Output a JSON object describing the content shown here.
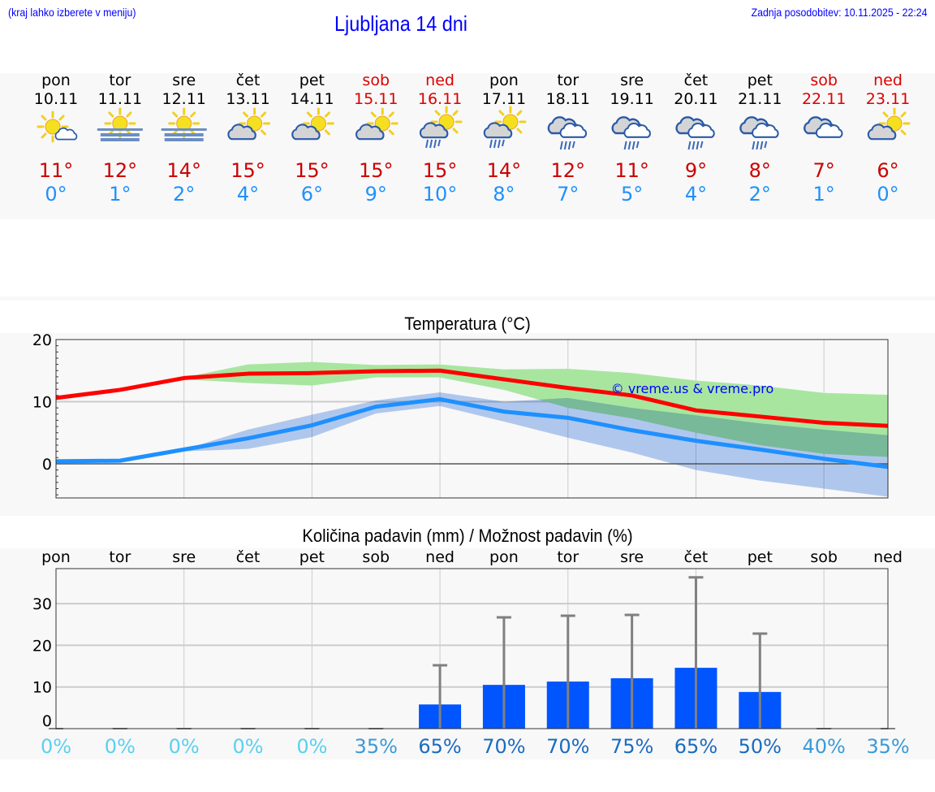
{
  "header": {
    "hint": "(kraj lahko izberete v meniju)",
    "title": "Ljubljana 14 dni",
    "updated": "Zadnja posodobitev: 10.11.2025 - 22:24"
  },
  "colors": {
    "max": "#ff0000",
    "min": "#1e90ff",
    "max_band": "#a8e6a0",
    "min_band": "#a8c4f2",
    "bar": "#0055ff",
    "weekend": "#dd0000"
  },
  "days": [
    {
      "name": "pon",
      "date": "10.11",
      "weekend": false,
      "icon": "sun-small-cloud",
      "max": "11°",
      "min": "0°"
    },
    {
      "name": "tor",
      "date": "11.11",
      "weekend": false,
      "icon": "sun-fog",
      "max": "12°",
      "min": "1°"
    },
    {
      "name": "sre",
      "date": "12.11",
      "weekend": false,
      "icon": "sun-fog",
      "max": "14°",
      "min": "2°"
    },
    {
      "name": "čet",
      "date": "13.11",
      "weekend": false,
      "icon": "partly-cloudy",
      "max": "15°",
      "min": "4°"
    },
    {
      "name": "pet",
      "date": "14.11",
      "weekend": false,
      "icon": "partly-cloudy",
      "max": "15°",
      "min": "6°"
    },
    {
      "name": "sob",
      "date": "15.11",
      "weekend": true,
      "icon": "partly-cloudy",
      "max": "15°",
      "min": "9°"
    },
    {
      "name": "ned",
      "date": "16.11",
      "weekend": true,
      "icon": "sun-cloud-rain",
      "max": "15°",
      "min": "10°"
    },
    {
      "name": "pon",
      "date": "17.11",
      "weekend": false,
      "icon": "sun-cloud-rain",
      "max": "14°",
      "min": "8°"
    },
    {
      "name": "tor",
      "date": "18.11",
      "weekend": false,
      "icon": "cloud-rain",
      "max": "12°",
      "min": "7°"
    },
    {
      "name": "sre",
      "date": "19.11",
      "weekend": false,
      "icon": "cloud-rain",
      "max": "11°",
      "min": "5°"
    },
    {
      "name": "čet",
      "date": "20.11",
      "weekend": false,
      "icon": "cloud-rain",
      "max": "9°",
      "min": "4°"
    },
    {
      "name": "pet",
      "date": "21.11",
      "weekend": false,
      "icon": "cloud-rain",
      "max": "8°",
      "min": "2°"
    },
    {
      "name": "sob",
      "date": "22.11",
      "weekend": true,
      "icon": "cloudy",
      "max": "7°",
      "min": "1°"
    },
    {
      "name": "ned",
      "date": "23.11",
      "weekend": true,
      "icon": "partly-cloudy",
      "max": "6°",
      "min": "0°"
    }
  ],
  "chart_data": [
    {
      "type": "line",
      "title": "Temperatura (°C)",
      "ylim": [
        -5.5,
        20
      ],
      "yticks": [
        "20",
        "10",
        "0"
      ],
      "grid": true,
      "watermark": "© vreme.us & vreme.pro",
      "x": [
        "10.11",
        "11.11",
        "12.11",
        "13.11",
        "14.11",
        "15.11",
        "16.11",
        "17.11",
        "18.11",
        "19.11",
        "20.11",
        "21.11",
        "22.11",
        "23.11"
      ],
      "series": [
        {
          "key": "max",
          "values": [
            10.6,
            11.9,
            13.8,
            14.5,
            14.6,
            14.9,
            15.0,
            13.6,
            12.2,
            11.0,
            8.6,
            7.6,
            6.6,
            6.1
          ]
        },
        {
          "key": "min",
          "values": [
            0.4,
            0.5,
            2.3,
            4.1,
            6.2,
            9.2,
            10.4,
            8.4,
            7.4,
            5.4,
            3.7,
            2.3,
            0.8,
            -0.5
          ]
        }
      ],
      "bands": [
        {
          "key": "max_range",
          "upper": [
            null,
            null,
            13.9,
            16.0,
            16.4,
            15.9,
            16.0,
            15.2,
            15.3,
            14.6,
            13.4,
            12.6,
            11.4,
            11.1
          ],
          "lower": [
            null,
            null,
            13.6,
            13.0,
            12.6,
            13.9,
            13.9,
            11.9,
            9.0,
            7.3,
            5.0,
            3.0,
            1.6,
            1.1
          ]
        },
        {
          "key": "min_range",
          "upper": [
            null,
            null,
            2.3,
            5.5,
            7.9,
            10.2,
            11.5,
            10.0,
            10.6,
            9.0,
            7.8,
            6.5,
            5.5,
            4.6
          ],
          "lower": [
            null,
            null,
            2.0,
            2.4,
            4.3,
            8.1,
            9.3,
            6.8,
            4.2,
            1.8,
            -1.0,
            -2.7,
            -4.0,
            -5.3
          ]
        }
      ]
    },
    {
      "type": "bar",
      "title": "Količina padavin (mm) / Možnost padavin (%)",
      "ylim": [
        0,
        38.4
      ],
      "yticks": [
        "30",
        "20",
        "10",
        "0"
      ],
      "grid": true,
      "categories": [
        "pon",
        "tor",
        "sre",
        "čet",
        "pet",
        "sob",
        "ned",
        "pon",
        "tor",
        "sre",
        "čet",
        "pet",
        "sob",
        "ned"
      ],
      "values": [
        0,
        0,
        0,
        0,
        0,
        0,
        5.8,
        10.5,
        11.3,
        12.1,
        14.6,
        8.8,
        0,
        0
      ],
      "error_max": [
        0,
        0,
        0,
        0,
        0,
        0,
        15.2,
        26.7,
        27.1,
        27.3,
        36.3,
        22.8,
        0,
        0
      ],
      "probability": [
        "0%",
        "0%",
        "0%",
        "0%",
        "0%",
        "35%",
        "65%",
        "70%",
        "70%",
        "75%",
        "65%",
        "50%",
        "40%",
        "35%"
      ],
      "probability_values": [
        0,
        0,
        0,
        0,
        0,
        35,
        65,
        70,
        70,
        75,
        65,
        50,
        40,
        35
      ]
    }
  ]
}
